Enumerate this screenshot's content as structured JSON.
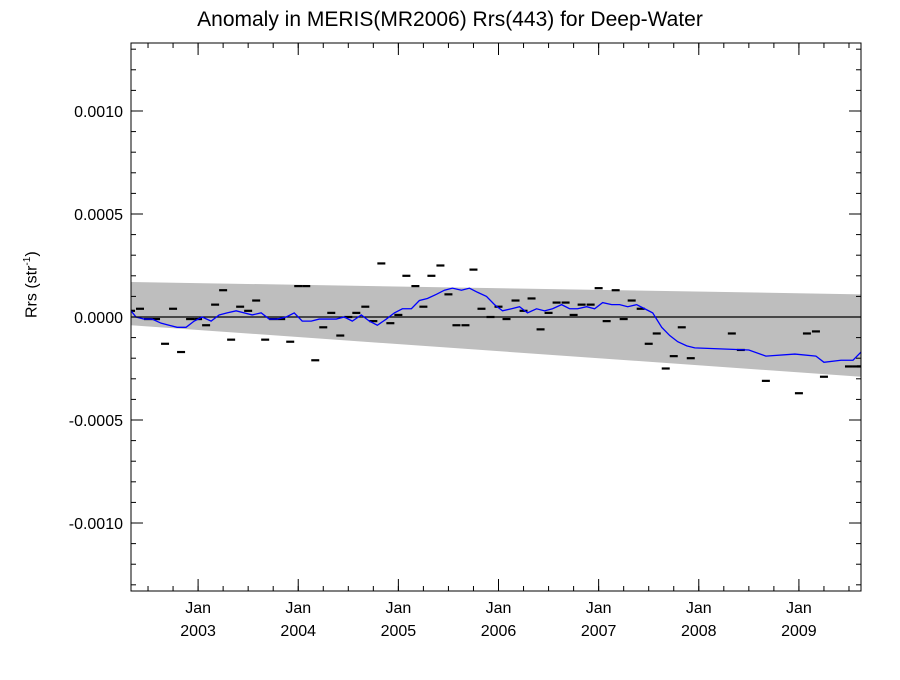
{
  "chart_data": {
    "type": "line",
    "title": "Anomaly in MERIS(MR2006) Rrs(443) for Deep-Water",
    "ylabel": "Rrs (str",
    "ylabel_sup": "-1",
    "ylabel_close": ")",
    "xlabel": "",
    "xlim": [
      2002.33,
      2009.62
    ],
    "ylim": [
      -0.00133,
      0.00133
    ],
    "yticks": [
      {
        "value": 0.001,
        "label": "0.0010"
      },
      {
        "value": 0.0005,
        "label": "0.0005"
      },
      {
        "value": 0.0,
        "label": "0.0000"
      },
      {
        "value": -0.0005,
        "label": "-0.0005"
      },
      {
        "value": -0.001,
        "label": "-0.0010"
      }
    ],
    "xticks": [
      {
        "value": 2003.0,
        "label1": "Jan",
        "label2": "2003"
      },
      {
        "value": 2004.0,
        "label1": "Jan",
        "label2": "2004"
      },
      {
        "value": 2005.0,
        "label1": "Jan",
        "label2": "2005"
      },
      {
        "value": 2006.0,
        "label1": "Jan",
        "label2": "2006"
      },
      {
        "value": 2007.0,
        "label1": "Jan",
        "label2": "2007"
      },
      {
        "value": 2008.0,
        "label1": "Jan",
        "label2": "2008"
      },
      {
        "value": 2009.0,
        "label1": "Jan",
        "label2": "2009"
      }
    ],
    "zero_line": 0.0,
    "band": {
      "x": [
        2002.33,
        2009.62
      ],
      "upper": [
        0.00017,
        0.00011
      ],
      "lower": [
        -4e-05,
        -0.00029
      ],
      "color": "#bebebe"
    },
    "series": [
      {
        "type": "scatter",
        "marker": "dash",
        "color": "#000000",
        "x": [
          2002.33,
          2002.42,
          2002.5,
          2002.58,
          2002.67,
          2002.75,
          2002.83,
          2002.92,
          2003.0,
          2003.08,
          2003.17,
          2003.25,
          2003.33,
          2003.42,
          2003.5,
          2003.58,
          2003.67,
          2003.75,
          2003.83,
          2003.92,
          2004.0,
          2004.08,
          2004.17,
          2004.25,
          2004.33,
          2004.42,
          2004.5,
          2004.58,
          2004.67,
          2004.75,
          2004.83,
          2004.92,
          2005.0,
          2005.08,
          2005.17,
          2005.25,
          2005.33,
          2005.42,
          2005.5,
          2005.58,
          2005.67,
          2005.75,
          2005.83,
          2005.92,
          2006.0,
          2006.08,
          2006.17,
          2006.25,
          2006.33,
          2006.42,
          2006.5,
          2006.58,
          2006.67,
          2006.75,
          2006.83,
          2006.92,
          2007.0,
          2007.08,
          2007.17,
          2007.25,
          2007.33,
          2007.42,
          2007.5,
          2007.58,
          2007.67,
          2007.75,
          2007.83,
          2007.92,
          2008.33,
          2008.42,
          2008.67,
          2009.0,
          2009.08,
          2009.17,
          2009.25,
          2009.5,
          2009.58,
          2009.62
        ],
        "y": [
          3e-05,
          4e-05,
          -1e-05,
          -1e-05,
          -0.00013,
          4e-05,
          -0.00017,
          -1e-05,
          -1e-05,
          -4e-05,
          6e-05,
          0.00013,
          -0.00011,
          5e-05,
          3e-05,
          8e-05,
          -0.00011,
          -1e-05,
          -1e-05,
          -0.00012,
          0.00015,
          0.00015,
          -0.00021,
          -5e-05,
          2e-05,
          -9e-05,
          0.0,
          2e-05,
          5e-05,
          -2e-05,
          0.00026,
          -3e-05,
          1e-05,
          0.0002,
          0.00015,
          5e-05,
          0.0002,
          0.00025,
          0.00011,
          -4e-05,
          -4e-05,
          0.00023,
          4e-05,
          0.0,
          5e-05,
          -1e-05,
          8e-05,
          3e-05,
          9e-05,
          -6e-05,
          2e-05,
          7e-05,
          7e-05,
          1e-05,
          6e-05,
          6e-05,
          0.00014,
          -2e-05,
          0.00013,
          -1e-05,
          8e-05,
          4e-05,
          -0.00013,
          -8e-05,
          -0.00025,
          -0.00019,
          -5e-05,
          -0.0002,
          -8e-05,
          -0.00016,
          -0.00031,
          -0.00037,
          -8e-05,
          -7e-05,
          -0.00029,
          -0.00024,
          -0.00024,
          -0.00024
        ]
      },
      {
        "type": "line",
        "color": "#0000ff",
        "x": [
          2002.33,
          2002.38,
          2002.46,
          2002.54,
          2002.63,
          2002.71,
          2002.79,
          2002.88,
          2002.96,
          2003.04,
          2003.13,
          2003.21,
          2003.29,
          2003.38,
          2003.46,
          2003.54,
          2003.63,
          2003.71,
          2003.79,
          2003.88,
          2003.96,
          2004.04,
          2004.13,
          2004.21,
          2004.29,
          2004.38,
          2004.46,
          2004.54,
          2004.63,
          2004.71,
          2004.79,
          2004.88,
          2004.96,
          2005.04,
          2005.13,
          2005.21,
          2005.29,
          2005.38,
          2005.46,
          2005.54,
          2005.63,
          2005.71,
          2005.79,
          2005.88,
          2005.96,
          2006.04,
          2006.13,
          2006.21,
          2006.29,
          2006.38,
          2006.46,
          2006.54,
          2006.63,
          2006.71,
          2006.79,
          2006.88,
          2006.96,
          2007.04,
          2007.13,
          2007.21,
          2007.29,
          2007.38,
          2007.46,
          2007.54,
          2007.63,
          2007.71,
          2007.79,
          2007.88,
          2007.96,
          2008.5,
          2008.67,
          2008.96,
          2009.17,
          2009.25,
          2009.42,
          2009.54,
          2009.62
        ],
        "y": [
          3e-05,
          0.0,
          -1e-05,
          -1e-05,
          -3e-05,
          -4e-05,
          -5e-05,
          -5e-05,
          -2e-05,
          0.0,
          -2e-05,
          1e-05,
          2e-05,
          3e-05,
          2e-05,
          1e-05,
          2e-05,
          -1e-05,
          -1e-05,
          0.0,
          2e-05,
          -2e-05,
          -2e-05,
          -1e-05,
          -1e-05,
          -1e-05,
          0.0,
          -2e-05,
          1e-05,
          -2e-05,
          -4e-05,
          -1e-05,
          2e-05,
          4e-05,
          4e-05,
          8e-05,
          9e-05,
          0.00011,
          0.00013,
          0.00014,
          0.00013,
          0.00014,
          0.00012,
          0.0001,
          6e-05,
          3e-05,
          4e-05,
          5e-05,
          2e-05,
          4e-05,
          3e-05,
          4e-05,
          6e-05,
          4e-05,
          4e-05,
          5e-05,
          4e-05,
          7e-05,
          6e-05,
          6e-05,
          5e-05,
          6e-05,
          4e-05,
          2e-05,
          -5e-05,
          -9e-05,
          -0.00012,
          -0.00014,
          -0.00015,
          -0.00016,
          -0.00019,
          -0.00018,
          -0.00019,
          -0.00022,
          -0.00021,
          -0.00021,
          -0.00017
        ]
      }
    ]
  }
}
